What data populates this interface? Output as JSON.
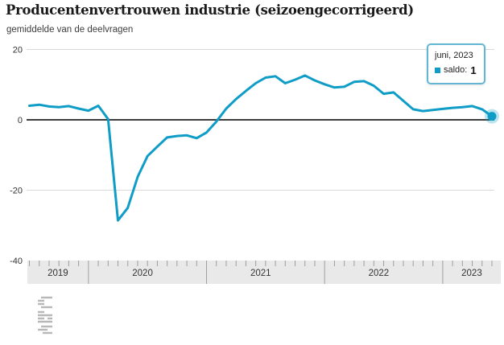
{
  "header": {
    "title": "Producentenvertrouwen industrie (seizoengecorrigeerd)",
    "subtitle": "gemiddelde van de deelvragen"
  },
  "tooltip": {
    "date_label": "juni, 2023",
    "series_label": "saldo:",
    "value": "1"
  },
  "colors": {
    "line": "#0f9dc7",
    "dot_halo": "rgba(15,157,199,0.28)",
    "zero_line": "#3d3d3d",
    "gridline": "#d9d9d9",
    "axis_band_bg": "#e9e9e9",
    "tick": "#9e9e9e",
    "axis_text": "#333333",
    "logo_gray": "#b8b8b8",
    "tooltip_border": "#63b5d4"
  },
  "y_axis": {
    "ticks": [
      20,
      0,
      -20,
      -40
    ]
  },
  "x_axis": {
    "years": [
      "2019",
      "2020",
      "2021",
      "2022",
      "2023"
    ]
  },
  "chart_data": {
    "type": "line",
    "title": "Producentenvertrouwen industrie (seizoengecorrigeerd)",
    "subtitle": "gemiddelde van de deelvragen",
    "xlabel": "",
    "ylabel": "saldo",
    "ylim": [
      -40,
      20
    ],
    "y_ticks": [
      20,
      0,
      -20,
      -40
    ],
    "grid": "horizontal",
    "legend_position": "none",
    "categories": [
      "jul 2019",
      "aug 2019",
      "sep 2019",
      "okt 2019",
      "nov 2019",
      "dec 2019",
      "jan 2020",
      "feb 2020",
      "mrt 2020",
      "apr 2020",
      "mei 2020",
      "jun 2020",
      "jul 2020",
      "aug 2020",
      "sep 2020",
      "okt 2020",
      "nov 2020",
      "dec 2020",
      "jan 2021",
      "feb 2021",
      "mrt 2021",
      "apr 2021",
      "mei 2021",
      "jun 2021",
      "jul 2021",
      "aug 2021",
      "sep 2021",
      "okt 2021",
      "nov 2021",
      "dec 2021",
      "jan 2022",
      "feb 2022",
      "mrt 2022",
      "apr 2022",
      "mei 2022",
      "jun 2022",
      "jul 2022",
      "aug 2022",
      "sep 2022",
      "okt 2022",
      "nov 2022",
      "dec 2022",
      "jan 2023",
      "feb 2023",
      "mrt 2023",
      "apr 2023",
      "mei 2023",
      "jun 2023"
    ],
    "series": [
      {
        "name": "saldo",
        "color": "#0f9dc7",
        "values": [
          4.0,
          4.3,
          3.8,
          3.6,
          3.9,
          3.2,
          2.6,
          4.0,
          0.2,
          -28.6,
          -25.0,
          -16.2,
          -10.3,
          -7.6,
          -5.0,
          -4.6,
          -4.4,
          -5.2,
          -3.6,
          -0.5,
          3.2,
          5.9,
          8.2,
          10.4,
          12.0,
          12.4,
          10.4,
          11.4,
          12.6,
          11.2,
          10.1,
          9.2,
          9.4,
          10.8,
          11.0,
          9.7,
          7.4,
          7.8,
          5.4,
          3.0,
          2.5,
          2.8,
          3.1,
          3.4,
          3.6,
          3.9,
          3.0,
          1.0
        ]
      }
    ],
    "highlight": {
      "category": "jun 2023",
      "value": 1
    }
  }
}
